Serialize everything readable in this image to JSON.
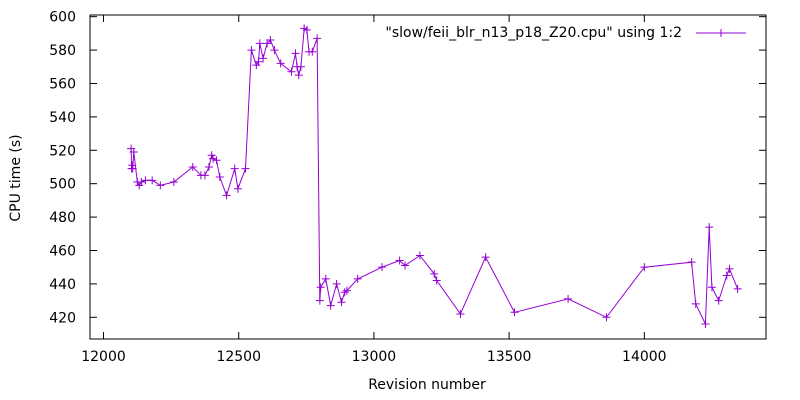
{
  "chart_data": {
    "type": "line",
    "title": "",
    "xlabel": "Revision number",
    "ylabel": "CPU time (s)",
    "xlim": [
      11950,
      14450
    ],
    "ylim": [
      407,
      601
    ],
    "xticks": [
      12000,
      12500,
      13000,
      13500,
      14000
    ],
    "yticks": [
      420,
      440,
      460,
      480,
      500,
      520,
      540,
      560,
      580,
      600
    ],
    "grid": false,
    "legend_position": "top-right",
    "series": [
      {
        "name": "\"slow/feii_blr_n13_p18_Z20.cpu\" using 1:2",
        "color": "#9400d3",
        "marker": "plus",
        "x": [
          12102,
          12104,
          12106,
          12108,
          12112,
          12125,
          12132,
          12140,
          12155,
          12180,
          12210,
          12260,
          12330,
          12360,
          12375,
          12390,
          12400,
          12405,
          12418,
          12430,
          12455,
          12485,
          12497,
          12525,
          12547,
          12565,
          12573,
          12578,
          12590,
          12605,
          12617,
          12632,
          12655,
          12695,
          12710,
          12716,
          12722,
          12730,
          12742,
          12752,
          12760,
          12772,
          12790,
          12800,
          12803,
          12822,
          12840,
          12862,
          12880,
          12892,
          12900,
          12940,
          13030,
          13095,
          13115,
          13170,
          13223,
          13232,
          13320,
          13413,
          13520,
          13718,
          13860,
          14000,
          14175,
          14190,
          14226,
          14240,
          14250,
          14275,
          14305,
          14315,
          14345
        ],
        "y": [
          521,
          509,
          511,
          509,
          519,
          501,
          499,
          501,
          502,
          502,
          499,
          501,
          510,
          505,
          505,
          510,
          517,
          515,
          514,
          504,
          493,
          509,
          497,
          509,
          580,
          571,
          573,
          584,
          575,
          584,
          586,
          580,
          572,
          567,
          578,
          570,
          565,
          570,
          593,
          592,
          579,
          579,
          587,
          430,
          438,
          443,
          427,
          440,
          429,
          435,
          436,
          443,
          450,
          454,
          451,
          457,
          446,
          442,
          422,
          456,
          423,
          431,
          420,
          450,
          453,
          428,
          416,
          474,
          438,
          430,
          445,
          449,
          437
        ]
      }
    ]
  }
}
